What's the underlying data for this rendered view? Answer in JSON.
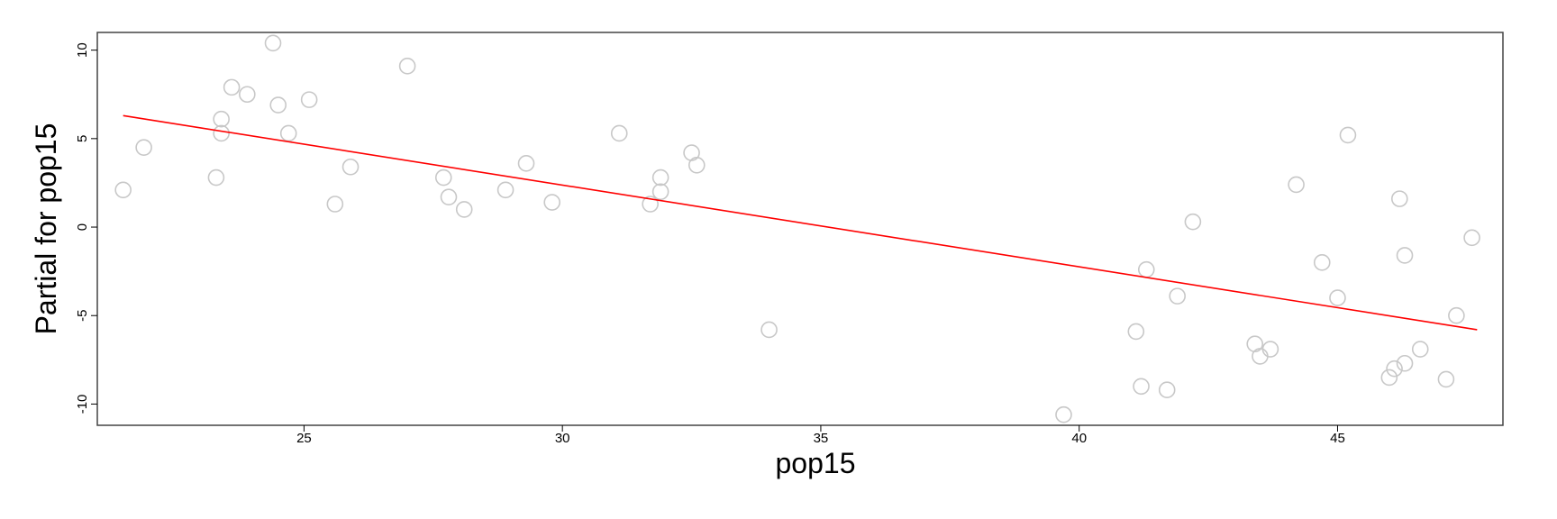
{
  "chart_data": {
    "type": "scatter",
    "title": "",
    "xlabel": "pop15",
    "ylabel": "Partial for pop15",
    "xlim": [
      21.0,
      48.2
    ],
    "ylim": [
      -11.2,
      11.0
    ],
    "x_ticks": [
      25,
      30,
      35,
      40,
      45
    ],
    "x_tick_labels": [
      "25",
      "30",
      "35",
      "40",
      "45"
    ],
    "y_ticks": [
      -10,
      -5,
      0,
      5,
      10
    ],
    "y_tick_labels": [
      "-10",
      "-5",
      "0",
      "5",
      "10"
    ],
    "grid": false,
    "legend": "none",
    "point_color": "#c8c8c8",
    "line_color": "#ff0000",
    "fit_line": {
      "x": [
        21.5,
        47.7
      ],
      "y": [
        6.3,
        -5.8
      ]
    },
    "points": [
      {
        "x": 21.5,
        "y": 2.1
      },
      {
        "x": 21.9,
        "y": 4.5
      },
      {
        "x": 23.3,
        "y": 2.8
      },
      {
        "x": 23.4,
        "y": 5.3
      },
      {
        "x": 23.4,
        "y": 6.1
      },
      {
        "x": 23.6,
        "y": 7.9
      },
      {
        "x": 23.9,
        "y": 7.5
      },
      {
        "x": 24.4,
        "y": 10.4
      },
      {
        "x": 24.5,
        "y": 6.9
      },
      {
        "x": 24.7,
        "y": 5.3
      },
      {
        "x": 25.1,
        "y": 7.2
      },
      {
        "x": 25.6,
        "y": 1.3
      },
      {
        "x": 25.9,
        "y": 3.4
      },
      {
        "x": 27.0,
        "y": 9.1
      },
      {
        "x": 27.7,
        "y": 2.8
      },
      {
        "x": 27.8,
        "y": 1.7
      },
      {
        "x": 28.1,
        "y": 1.0
      },
      {
        "x": 28.9,
        "y": 2.1
      },
      {
        "x": 29.3,
        "y": 3.6
      },
      {
        "x": 29.8,
        "y": 1.4
      },
      {
        "x": 31.1,
        "y": 5.3
      },
      {
        "x": 31.7,
        "y": 1.3
      },
      {
        "x": 31.9,
        "y": 2.8
      },
      {
        "x": 31.9,
        "y": 2.0
      },
      {
        "x": 32.5,
        "y": 4.2
      },
      {
        "x": 32.6,
        "y": 3.5
      },
      {
        "x": 34.0,
        "y": -5.8
      },
      {
        "x": 39.7,
        "y": -10.6
      },
      {
        "x": 41.1,
        "y": -5.9
      },
      {
        "x": 41.2,
        "y": -9.0
      },
      {
        "x": 41.3,
        "y": -2.4
      },
      {
        "x": 41.7,
        "y": -9.2
      },
      {
        "x": 41.9,
        "y": -3.9
      },
      {
        "x": 42.2,
        "y": 0.3
      },
      {
        "x": 43.4,
        "y": -6.6
      },
      {
        "x": 43.5,
        "y": -7.3
      },
      {
        "x": 43.7,
        "y": -6.9
      },
      {
        "x": 44.2,
        "y": 2.4
      },
      {
        "x": 44.7,
        "y": -2.0
      },
      {
        "x": 45.0,
        "y": -4.0
      },
      {
        "x": 45.2,
        "y": 5.2
      },
      {
        "x": 46.0,
        "y": -8.5
      },
      {
        "x": 46.1,
        "y": -8.0
      },
      {
        "x": 46.2,
        "y": 1.6
      },
      {
        "x": 46.3,
        "y": -7.7
      },
      {
        "x": 46.3,
        "y": -1.6
      },
      {
        "x": 46.6,
        "y": -6.9
      },
      {
        "x": 47.1,
        "y": -8.6
      },
      {
        "x": 47.3,
        "y": -5.0
      },
      {
        "x": 47.6,
        "y": -0.6
      }
    ]
  }
}
